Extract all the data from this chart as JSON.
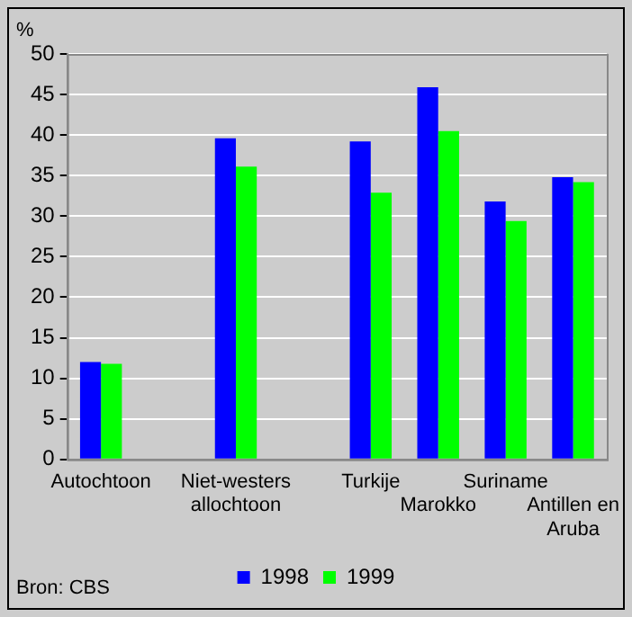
{
  "chart_data": {
    "type": "bar",
    "ylabel": "%",
    "categories": [
      "Autochtoon",
      null,
      "Niet-westers allochtoon",
      null,
      "Turkije",
      "Marokko",
      "Suriname",
      "Antillen en Aruba"
    ],
    "series": [
      {
        "name": "1998",
        "color": "#0000ff",
        "values": [
          12.0,
          null,
          39.6,
          null,
          39.2,
          45.9,
          31.8,
          34.8
        ]
      },
      {
        "name": "1999",
        "color": "#00ff00",
        "values": [
          11.8,
          null,
          36.1,
          null,
          32.9,
          40.5,
          29.4,
          34.2
        ]
      }
    ],
    "ylim": [
      0,
      50
    ],
    "yticks": [
      0,
      5,
      10,
      15,
      20,
      25,
      30,
      35,
      40,
      45,
      50
    ],
    "grid": "y",
    "legend": "bottom",
    "annotations": [
      "Bron: CBS"
    ]
  }
}
